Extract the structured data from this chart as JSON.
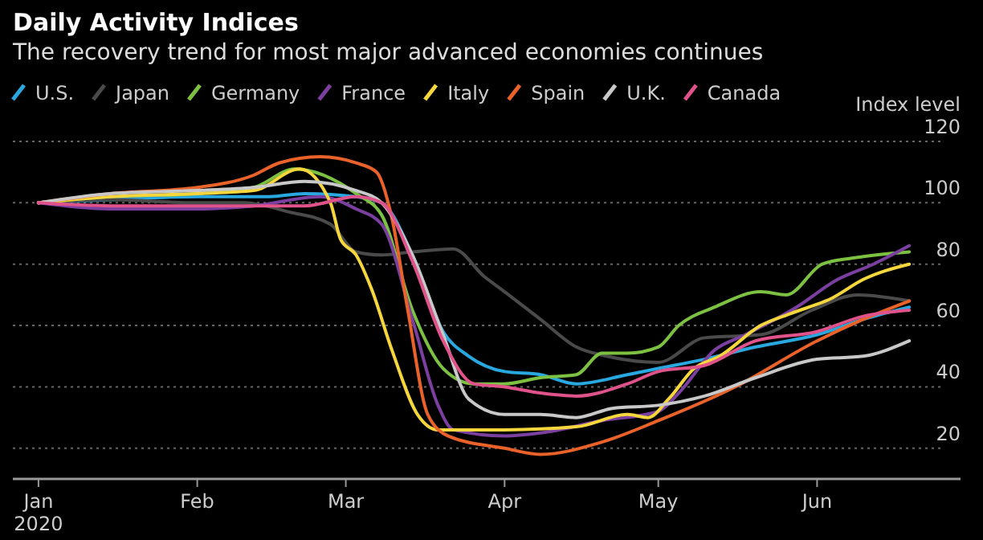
{
  "chart_data": {
    "type": "line",
    "title": "Daily Activity Indices",
    "subtitle": "The recovery trend for most major advanced economies continues",
    "ylabel": "Index level",
    "legend": "top left",
    "grid": "y",
    "line_style": "solid",
    "marker": "none",
    "xlim": [
      "2019-12-27",
      "2020-06-29"
    ],
    "xticks": [
      {
        "value": "2020-01-01",
        "label": "Jan\n2020"
      },
      {
        "value": "2020-02-01",
        "label": "Feb"
      },
      {
        "value": "2020-03-01",
        "label": "Mar"
      },
      {
        "value": "2020-04-01",
        "label": "Apr"
      },
      {
        "value": "2020-05-01",
        "label": "May"
      },
      {
        "value": "2020-06-01",
        "label": "Jun"
      }
    ],
    "ylim": [
      10,
      120
    ],
    "yticks": [
      20,
      40,
      60,
      80,
      100,
      120
    ],
    "series": [
      {
        "name": "U.S.",
        "color": "#29a8e0",
        "x": [
          "2020-01-01",
          "2020-01-15",
          "2020-02-01",
          "2020-02-15",
          "2020-02-22",
          "2020-03-03",
          "2020-03-08",
          "2020-03-14",
          "2020-03-20",
          "2020-03-25",
          "2020-04-01",
          "2020-04-08",
          "2020-04-15",
          "2020-04-25",
          "2020-05-01",
          "2020-05-10",
          "2020-05-20",
          "2020-06-01",
          "2020-06-10",
          "2020-06-19"
        ],
        "values": [
          100,
          101,
          102,
          102,
          103,
          102,
          100,
          83,
          58,
          50,
          45,
          44,
          41,
          44,
          46,
          49,
          53,
          57,
          62,
          66
        ]
      },
      {
        "name": "Japan",
        "color": "#4a4a4a",
        "x": [
          "2020-01-01",
          "2020-01-15",
          "2020-02-01",
          "2020-02-10",
          "2020-02-19",
          "2020-02-27",
          "2020-03-03",
          "2020-03-08",
          "2020-03-14",
          "2020-03-22",
          "2020-03-28",
          "2020-04-01",
          "2020-04-08",
          "2020-04-15",
          "2020-04-21",
          "2020-05-01",
          "2020-05-10",
          "2020-05-21",
          "2020-05-31",
          "2020-06-09",
          "2020-06-19"
        ],
        "values": [
          100,
          101,
          100,
          100,
          97,
          93,
          84,
          83,
          84,
          85,
          76,
          71,
          62,
          53,
          50,
          48,
          56,
          57,
          65,
          70,
          68
        ]
      },
      {
        "name": "Germany",
        "color": "#7dc142",
        "x": [
          "2020-01-01",
          "2020-01-15",
          "2020-02-01",
          "2020-02-12",
          "2020-02-20",
          "2020-03-03",
          "2020-03-08",
          "2020-03-14",
          "2020-03-20",
          "2020-03-26",
          "2020-04-01",
          "2020-04-08",
          "2020-04-15",
          "2020-04-20",
          "2020-04-25",
          "2020-05-01",
          "2020-05-05",
          "2020-05-12",
          "2020-05-21",
          "2020-05-26",
          "2020-06-02",
          "2020-06-08",
          "2020-06-19"
        ],
        "values": [
          100,
          102,
          103,
          105,
          111,
          103,
          96,
          65,
          46,
          41,
          41,
          43,
          44,
          51,
          51,
          53,
          60,
          66,
          71,
          70,
          80,
          82,
          84
        ]
      },
      {
        "name": "France",
        "color": "#7b3fa0",
        "x": [
          "2020-01-01",
          "2020-01-15",
          "2020-02-01",
          "2020-02-12",
          "2020-02-25",
          "2020-03-03",
          "2020-03-08",
          "2020-03-14",
          "2020-03-19",
          "2020-03-22",
          "2020-04-01",
          "2020-04-08",
          "2020-04-20",
          "2020-05-01",
          "2020-05-05",
          "2020-05-12",
          "2020-05-18",
          "2020-05-28",
          "2020-06-05",
          "2020-06-12",
          "2020-06-19"
        ],
        "values": [
          100,
          98,
          98,
          99,
          102,
          98,
          93,
          62,
          34,
          26,
          24,
          25,
          29,
          32,
          38,
          52,
          57,
          66,
          75,
          80,
          86
        ]
      },
      {
        "name": "Italy",
        "color": "#f5d63d",
        "x": [
          "2020-01-01",
          "2020-01-15",
          "2020-02-01",
          "2020-02-12",
          "2020-02-21",
          "2020-02-27",
          "2020-02-29",
          "2020-03-03",
          "2020-03-06",
          "2020-03-10",
          "2020-03-15",
          "2020-03-19",
          "2020-04-01",
          "2020-04-15",
          "2020-04-25",
          "2020-04-29",
          "2020-05-03",
          "2020-05-08",
          "2020-05-13",
          "2020-05-21",
          "2020-05-27",
          "2020-06-04",
          "2020-06-10",
          "2020-06-19"
        ],
        "values": [
          100,
          102,
          103,
          104,
          111,
          100,
          88,
          83,
          72,
          52,
          31,
          26,
          26,
          27,
          31,
          30,
          36,
          46,
          50,
          60,
          64,
          69,
          75,
          80
        ]
      },
      {
        "name": "Spain",
        "color": "#e8622a",
        "x": [
          "2020-01-01",
          "2020-01-15",
          "2020-02-01",
          "2020-02-12",
          "2020-02-17",
          "2020-02-25",
          "2020-03-03",
          "2020-03-07",
          "2020-03-10",
          "2020-03-13",
          "2020-03-17",
          "2020-03-21",
          "2020-04-01",
          "2020-04-08",
          "2020-04-20",
          "2020-05-01",
          "2020-05-16",
          "2020-06-01",
          "2020-06-10",
          "2020-06-19"
        ],
        "values": [
          100,
          103,
          105,
          109,
          113,
          115,
          113,
          110,
          95,
          66,
          31,
          24,
          20,
          18,
          22,
          29,
          40,
          55,
          62,
          68
        ]
      },
      {
        "name": "U.K.",
        "color": "#c8c8c8",
        "x": [
          "2020-01-01",
          "2020-01-15",
          "2020-02-01",
          "2020-02-12",
          "2020-02-22",
          "2020-03-03",
          "2020-03-08",
          "2020-03-14",
          "2020-03-20",
          "2020-03-25",
          "2020-04-01",
          "2020-04-08",
          "2020-04-15",
          "2020-04-22",
          "2020-05-01",
          "2020-05-10",
          "2020-05-20",
          "2020-06-01",
          "2020-06-10",
          "2020-06-19"
        ],
        "values": [
          100,
          103,
          104,
          105,
          107,
          104,
          100,
          83,
          57,
          36,
          31,
          31,
          30,
          33,
          34,
          37,
          43,
          49,
          50,
          55
        ]
      },
      {
        "name": "Canada",
        "color": "#e0528a",
        "x": [
          "2020-01-01",
          "2020-01-15",
          "2020-02-01",
          "2020-02-12",
          "2020-02-22",
          "2020-03-03",
          "2020-03-08",
          "2020-03-14",
          "2020-03-20",
          "2020-03-26",
          "2020-04-01",
          "2020-04-08",
          "2020-04-15",
          "2020-04-25",
          "2020-05-01",
          "2020-05-10",
          "2020-05-20",
          "2020-06-01",
          "2020-06-10",
          "2020-06-19"
        ],
        "values": [
          100,
          99,
          99,
          99,
          99,
          102,
          100,
          81,
          55,
          41,
          40,
          38,
          37,
          41,
          45,
          47,
          55,
          58,
          63,
          65
        ]
      }
    ]
  }
}
